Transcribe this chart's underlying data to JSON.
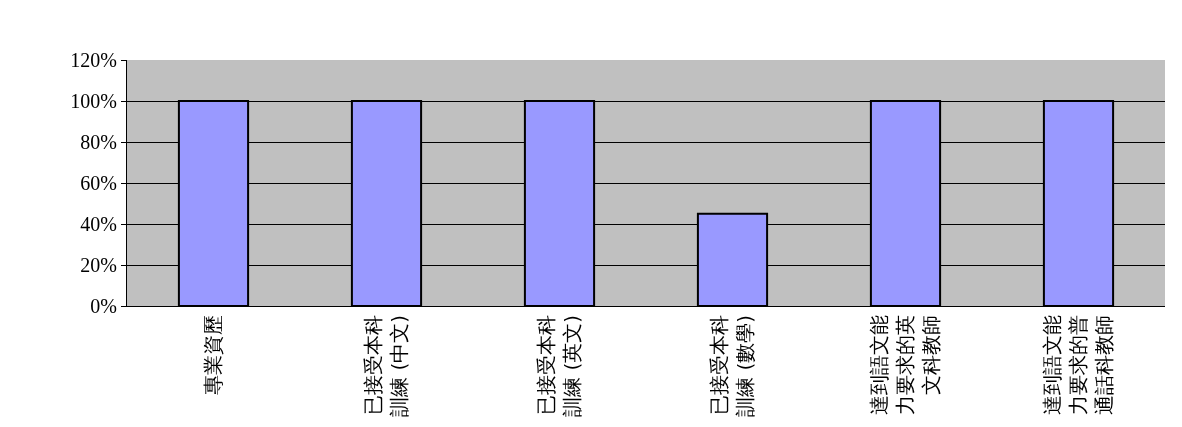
{
  "chart_data": {
    "type": "bar",
    "categories": [
      "專業資歷",
      "已接受本科訓練 (中文)",
      "已接受本科訓練 (英文)",
      "已接受本科訓練 (數學)",
      "達到語文能力要求的英文科教師",
      "達到語文能力要求的普通話科教師"
    ],
    "values": [
      100,
      100,
      100,
      45,
      100,
      100
    ],
    "color": "#9999ff",
    "ylim": [
      0,
      120
    ],
    "yticks": [
      {
        "value": 0,
        "label": "0%"
      },
      {
        "value": 20,
        "label": "20%"
      },
      {
        "value": 40,
        "label": "40%"
      },
      {
        "value": 60,
        "label": "60%"
      },
      {
        "value": 80,
        "label": "80%"
      },
      {
        "value": 100,
        "label": "100%"
      },
      {
        "value": 120,
        "label": "120%"
      }
    ],
    "grid": "y",
    "legend": false
  }
}
